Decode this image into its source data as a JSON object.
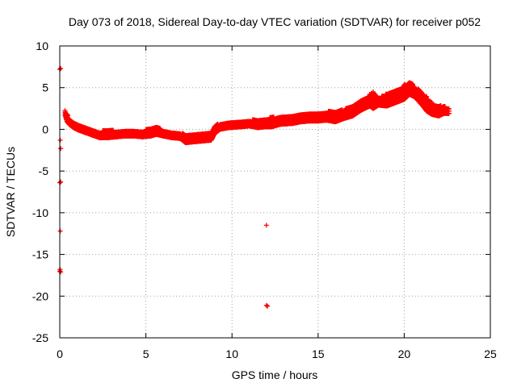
{
  "chart_data": {
    "type": "scatter",
    "title": "Day 073 of 2018, Sidereal Day-to-day VTEC variation (SDTVAR) for receiver p052",
    "xlabel": "GPS time / hours",
    "ylabel": "SDTVAR / TECUs",
    "xlim": [
      0,
      25
    ],
    "ylim": [
      -25,
      10
    ],
    "xticks": [
      0,
      5,
      10,
      15,
      20,
      25
    ],
    "yticks": [
      -25,
      -20,
      -15,
      -10,
      -5,
      0,
      5,
      10
    ],
    "xtick_labels": [
      "0",
      "5",
      "10",
      "15",
      "20",
      "25"
    ],
    "ytick_labels": [
      "-25",
      "-20",
      "-15",
      "-10",
      "-5",
      "0",
      "5",
      "10"
    ],
    "grid": true,
    "marker": "plus",
    "color": "#ff0000",
    "series": [
      {
        "name": "SDTVAR p052",
        "band": [
          [
            0.3,
            1.7,
            2.3
          ],
          [
            0.4,
            1.0,
            1.9
          ],
          [
            0.55,
            0.6,
            1.4
          ],
          [
            0.8,
            0.2,
            0.9
          ],
          [
            1.1,
            -0.1,
            0.6
          ],
          [
            1.5,
            -0.4,
            0.3
          ],
          [
            1.9,
            -0.7,
            0.0
          ],
          [
            2.3,
            -1.0,
            -0.2
          ],
          [
            2.8,
            -1.0,
            -0.1
          ],
          [
            3.3,
            -0.9,
            -0.1
          ],
          [
            3.8,
            -0.8,
            0.0
          ],
          [
            4.3,
            -0.8,
            0.0
          ],
          [
            4.8,
            -0.9,
            -0.1
          ],
          [
            5.3,
            -0.8,
            0.1
          ],
          [
            5.6,
            -0.6,
            0.3
          ],
          [
            6.0,
            -0.8,
            0.0
          ],
          [
            6.5,
            -1.0,
            -0.3
          ],
          [
            7.0,
            -1.1,
            -0.4
          ],
          [
            7.3,
            -1.6,
            -0.5
          ],
          [
            7.8,
            -1.5,
            -0.4
          ],
          [
            8.3,
            -1.4,
            -0.3
          ],
          [
            8.8,
            -1.3,
            -0.2
          ],
          [
            9.0,
            -0.5,
            0.4
          ],
          [
            9.3,
            0.0,
            0.8
          ],
          [
            9.8,
            0.2,
            1.0
          ],
          [
            10.5,
            0.3,
            1.1
          ],
          [
            11.0,
            0.4,
            1.2
          ],
          [
            11.5,
            0.2,
            1.1
          ],
          [
            11.9,
            0.3,
            1.2
          ],
          [
            12.3,
            0.3,
            1.5
          ],
          [
            12.8,
            0.6,
            1.5
          ],
          [
            13.5,
            0.7,
            1.6
          ],
          [
            14.0,
            0.9,
            1.8
          ],
          [
            14.5,
            1.0,
            2.0
          ],
          [
            15.0,
            1.0,
            2.0
          ],
          [
            15.5,
            1.1,
            2.2
          ],
          [
            16.0,
            0.9,
            2.1
          ],
          [
            16.5,
            1.3,
            2.4
          ],
          [
            17.0,
            1.6,
            2.8
          ],
          [
            17.5,
            2.3,
            3.5
          ],
          [
            18.0,
            2.8,
            4.2
          ],
          [
            18.2,
            2.5,
            4.5
          ],
          [
            18.5,
            2.9,
            3.8
          ],
          [
            19.0,
            2.8,
            4.3
          ],
          [
            19.5,
            3.2,
            4.6
          ],
          [
            20.0,
            3.6,
            5.3
          ],
          [
            20.3,
            4.2,
            5.8
          ],
          [
            20.6,
            3.9,
            5.2
          ],
          [
            21.0,
            3.0,
            4.5
          ],
          [
            21.3,
            2.2,
            3.9
          ],
          [
            21.6,
            1.8,
            3.2
          ],
          [
            22.0,
            1.6,
            2.9
          ],
          [
            22.3,
            1.9,
            2.8
          ],
          [
            22.6,
            1.9,
            2.6
          ]
        ],
        "outliers": [
          [
            0.0,
            7.2
          ],
          [
            0.05,
            7.3
          ],
          [
            0.03,
            -1.3
          ],
          [
            0.05,
            -2.3
          ],
          [
            0.0,
            -6.4
          ],
          [
            0.05,
            -6.3
          ],
          [
            0.03,
            -12.2
          ],
          [
            0.0,
            -17.0
          ],
          [
            0.05,
            -17.1
          ],
          [
            0.02,
            -16.8
          ],
          [
            12.0,
            -11.5
          ],
          [
            12.0,
            -21.1
          ],
          [
            12.06,
            -21.2
          ]
        ]
      }
    ]
  }
}
